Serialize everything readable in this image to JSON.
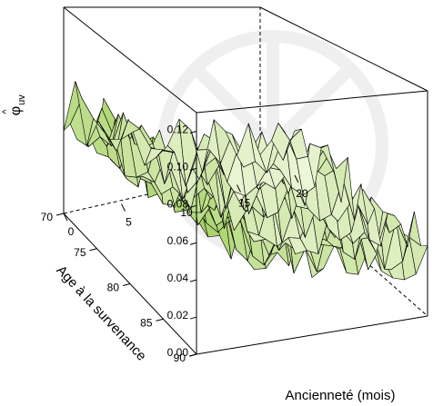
{
  "chart_data": {
    "type": "surface",
    "title": "",
    "zlabel": "φ̂uv",
    "zlabel_main": "φ",
    "zlabel_sub": "uv",
    "xlabel": "Ancienneté (mois)",
    "ylabel": "Age à la survenance",
    "xlim": [
      0,
      20
    ],
    "ylim": [
      70,
      90
    ],
    "zlim": [
      0,
      0.13
    ],
    "x_ticks": [
      "0",
      "5",
      "10",
      "15",
      "20"
    ],
    "y_ticks": [
      "70",
      "75",
      "80",
      "85",
      "90"
    ],
    "z_ticks": [
      "0.00",
      "0.02",
      "0.04",
      "0.06",
      "0.08",
      "0.10",
      "0.12"
    ],
    "surface_colors": {
      "high": "#8ec63f",
      "low": "#f4f9e4",
      "edge": "#000000"
    },
    "grid": {
      "x_step": 1,
      "y_step": 1,
      "description_of_values": "noisy surface, highest (~0.07) at x=0 near age 90, decreasing toward ~0.01 at x=20; spikes up to ~0.10 around x=6-8, age 80-85"
    }
  },
  "icons": {
    "watermark": "faint-logo-watermark"
  }
}
